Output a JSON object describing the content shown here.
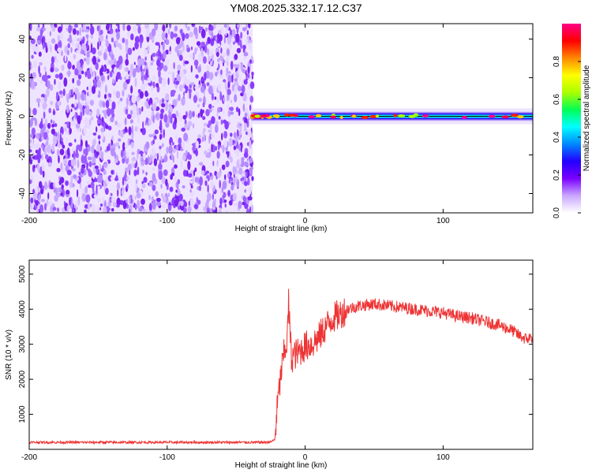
{
  "chart_data": [
    {
      "type": "heatmap",
      "title": "YM08.2025.332.17.12.C37",
      "xlabel": "Height of straight line (km)",
      "ylabel": "Frequency (Hz)",
      "xlim": [
        -200,
        165
      ],
      "ylim": [
        -50,
        48
      ],
      "xticks": [
        -200,
        -100,
        0,
        100
      ],
      "xtick_labels": [
        "-200",
        "-100",
        "0",
        "100"
      ],
      "yticks": [
        40,
        20,
        0,
        -20,
        -40
      ],
      "ytick_labels": [
        "40",
        "20",
        "0",
        "-20",
        "-40"
      ],
      "noise_region_x": [
        -200,
        -38
      ],
      "signal_band_x": [
        -38,
        165
      ],
      "signal_center_hz": 0,
      "colorbar": {
        "label": "Normalized spectral amplitude",
        "range": [
          0,
          1
        ],
        "ticks": [
          0.0,
          0.2,
          0.4,
          0.6,
          0.8
        ],
        "tick_labels": [
          "0.0",
          "0.2",
          "0.4",
          "0.6",
          "0.8"
        ],
        "colors": [
          "#ffffff",
          "#c9a7ff",
          "#7a00ff",
          "#2200ff",
          "#0088ff",
          "#00ffff",
          "#00ff55",
          "#aaff00",
          "#ffff00",
          "#ff8800",
          "#ff0000",
          "#ff0088"
        ]
      }
    },
    {
      "type": "line",
      "xlabel": "Height of straight line (km)",
      "ylabel": "SNR (10 * v/v)",
      "xlim": [
        -200,
        165
      ],
      "ylim": [
        0,
        5400
      ],
      "xticks": [
        -200,
        -100,
        0,
        100
      ],
      "xtick_labels": [
        "-200",
        "-100",
        "0",
        "100"
      ],
      "yticks": [
        1000,
        2000,
        3000,
        4000,
        5000
      ],
      "ytick_labels": [
        "1000",
        "2000",
        "3000",
        "4000",
        "5000"
      ],
      "series": [
        {
          "name": "SNR",
          "color": "#ee3333",
          "x": [
            -200,
            -180,
            -160,
            -140,
            -120,
            -100,
            -80,
            -60,
            -40,
            -30,
            -25,
            -22,
            -20,
            -17,
            -15,
            -13,
            -12,
            -10,
            -8,
            -5,
            0,
            5,
            10,
            15,
            20,
            25,
            30,
            40,
            50,
            60,
            70,
            80,
            90,
            100,
            110,
            120,
            130,
            140,
            150,
            155,
            160,
            165
          ],
          "y": [
            200,
            200,
            200,
            200,
            200,
            200,
            200,
            200,
            200,
            200,
            210,
            280,
            1300,
            2300,
            2800,
            3100,
            4200,
            2600,
            2700,
            2750,
            2950,
            3000,
            3200,
            3500,
            3750,
            3850,
            4000,
            4100,
            4150,
            4100,
            4050,
            4000,
            3950,
            3900,
            3800,
            3750,
            3650,
            3550,
            3400,
            3250,
            3150,
            3200
          ]
        }
      ]
    }
  ]
}
